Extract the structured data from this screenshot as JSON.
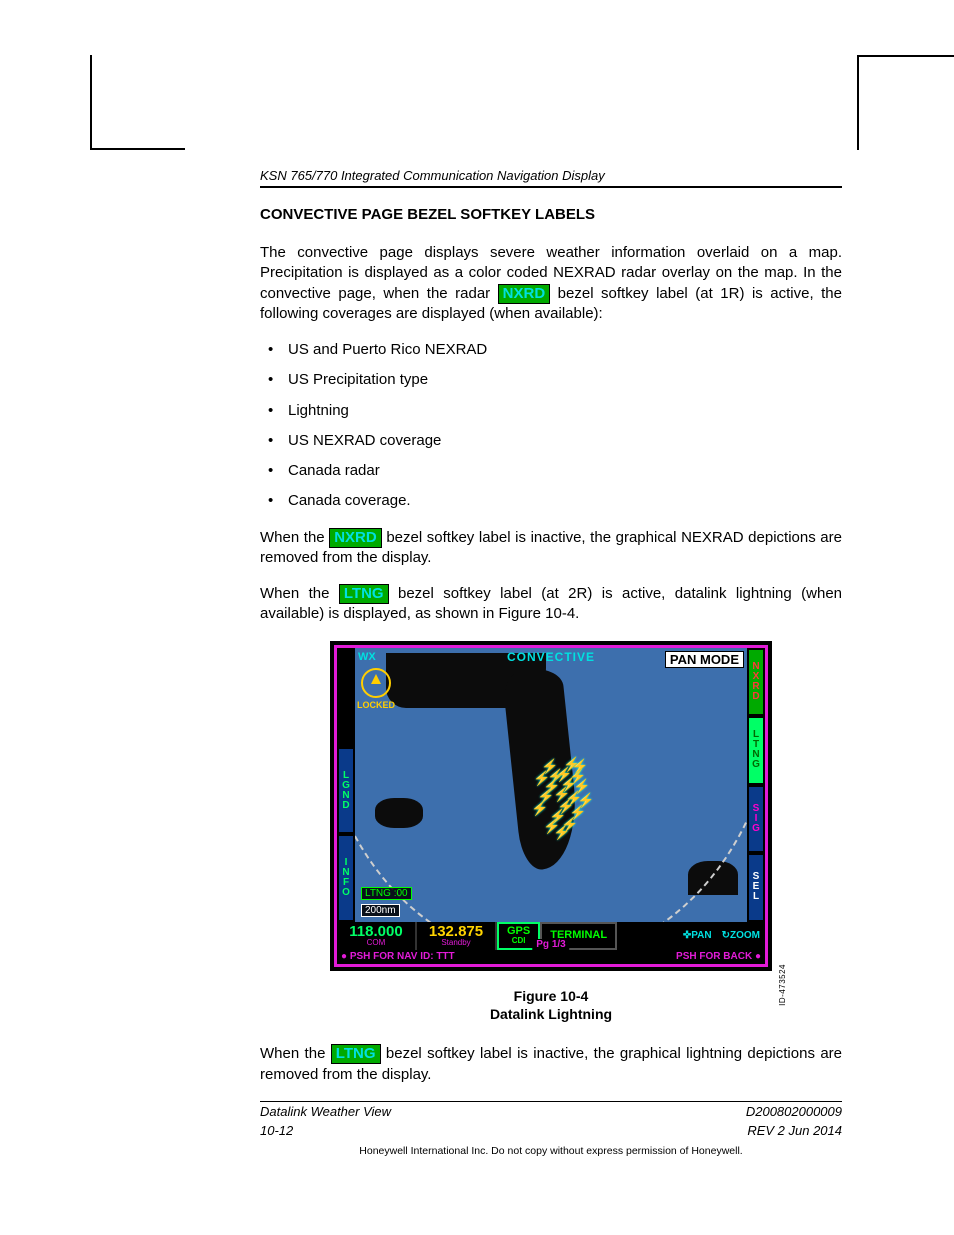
{
  "header_title": "KSN 765/770 Integrated Communication Navigation Display",
  "section_title": "CONVECTIVE PAGE BEZEL SOFTKEY LABELS",
  "para1_a": "The convective page displays severe weather information overlaid on a map. Precipitation is displayed as a color coded NEXRAD radar overlay on the map. In the convective page, when the radar ",
  "para1_b": " bezel softkey label (at 1R) is active, the following coverages are displayed (when available):",
  "nxrd_label": "NXRD",
  "ltng_label": "LTNG",
  "bullets": [
    "US and Puerto Rico NEXRAD",
    "US Precipitation type",
    "Lightning",
    "US NEXRAD coverage",
    "Canada radar",
    "Canada coverage."
  ],
  "para2_a": "When the ",
  "para2_b": " bezel softkey label is inactive, the graphical NEXRAD depictions are removed from the display.",
  "para3_a": "When the ",
  "para3_b": " bezel softkey label (at 2R) is active, datalink lightning (when available) is displayed, as shown in Figure 10-4.",
  "softkey_colors": {
    "active_bg": "#00aa00",
    "active_fg": "#000000",
    "cyan_fg": "#00e0e0"
  },
  "figure_number": "Figure 10-4",
  "figure_title": "Datalink Lightning",
  "para4_a": "When the ",
  "para4_b": " bezel softkey label is inactive, the graphical lightning depictions are removed from the display.",
  "footer": {
    "left1": "Datalink Weather View",
    "left2": "10-12",
    "right1": "D200802000009",
    "right2": "REV 2   Jun 2014",
    "copyright": "Honeywell International Inc. Do not copy without express permission of Honeywell."
  },
  "display": {
    "border_color": "#e31bd8",
    "water_color": "#3d6fad",
    "land_color": "#0c0c0c",
    "wx": "WX",
    "convective": "CONVECTIVE",
    "pan_mode": "PAN MODE",
    "locked": "LOCKED",
    "ltng_age": "LTNG :00",
    "range": "200nm",
    "freq_active": "118.000",
    "freq_active_label": "COM",
    "freq_standby": "132.875",
    "freq_standby_label": "Standby",
    "gps": "GPS",
    "cdi": "CDI",
    "terminal": "TERMINAL",
    "pan": "PAN",
    "zoom": "ZOOM",
    "page": "Pg 1/3",
    "psh_back": "PSH FOR BACK",
    "psh_nav": "PSH FOR NAV  ID: TTT",
    "id_number": "ID-473524",
    "side_left": [
      {
        "letters": [
          "L",
          "G",
          "N",
          "D"
        ],
        "bg": "#0a3a8a",
        "fg": "#00ff66"
      },
      {
        "letters": [
          "I",
          "N",
          "F",
          "O"
        ],
        "bg": "#0a3a8a",
        "fg": "#00ff66"
      }
    ],
    "side_right": [
      {
        "letters": [
          "N",
          "X",
          "R",
          "D"
        ],
        "bg": "#00aa00",
        "fg": "#ff3a3a"
      },
      {
        "letters": [
          "L",
          "T",
          "N",
          "G"
        ],
        "bg": "#00ff66",
        "fg": "#006a00"
      },
      {
        "letters": [
          "S",
          "I",
          "G"
        ],
        "bg": "#0a3a8a",
        "fg": "#ff00cc"
      },
      {
        "letters": [
          "S",
          "E",
          "L"
        ],
        "bg": "#0a3a8a",
        "fg": "#ffffff"
      }
    ],
    "lightning_points": [
      [
        186,
        110
      ],
      [
        192,
        120
      ],
      [
        188,
        130
      ],
      [
        200,
        118
      ],
      [
        205,
        128
      ],
      [
        198,
        138
      ],
      [
        208,
        108
      ],
      [
        214,
        120
      ],
      [
        218,
        130
      ],
      [
        210,
        142
      ],
      [
        202,
        150
      ],
      [
        194,
        160
      ],
      [
        188,
        170
      ],
      [
        198,
        176
      ],
      [
        206,
        168
      ],
      [
        214,
        156
      ],
      [
        222,
        144
      ],
      [
        216,
        110
      ],
      [
        178,
        122
      ],
      [
        182,
        140
      ],
      [
        176,
        152
      ]
    ]
  }
}
